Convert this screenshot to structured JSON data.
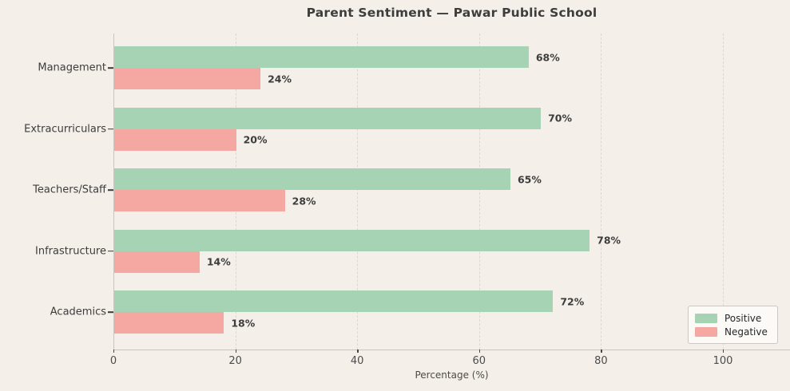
{
  "title": "Parent Sentiment — Pawar Public School",
  "chart_data": {
    "type": "bar",
    "orientation": "horizontal",
    "title": "Parent Sentiment — Pawar Public School",
    "xlabel": "Percentage (%)",
    "ylabel": "",
    "categories": [
      "Management",
      "Extracurriculars",
      "Teachers/Staff",
      "Infrastructure",
      "Academics"
    ],
    "series": [
      {
        "name": "Positive",
        "color": "#a6d3b4",
        "values": [
          68,
          70,
          65,
          78,
          72
        ]
      },
      {
        "name": "Negative",
        "color": "#f5a8a2",
        "values": [
          24,
          20,
          28,
          14,
          18
        ]
      }
    ],
    "value_label_suffix": "%",
    "xlim": [
      0,
      111
    ],
    "xticks": [
      0,
      20,
      40,
      60,
      80,
      100
    ],
    "grid": "vertical-dashed",
    "legend_position": "lower right",
    "background_color": "#f4efe9"
  },
  "legend": {
    "items": [
      {
        "label": "Positive",
        "color": "#a6d3b4"
      },
      {
        "label": "Negative",
        "color": "#f5a8a2"
      }
    ]
  }
}
